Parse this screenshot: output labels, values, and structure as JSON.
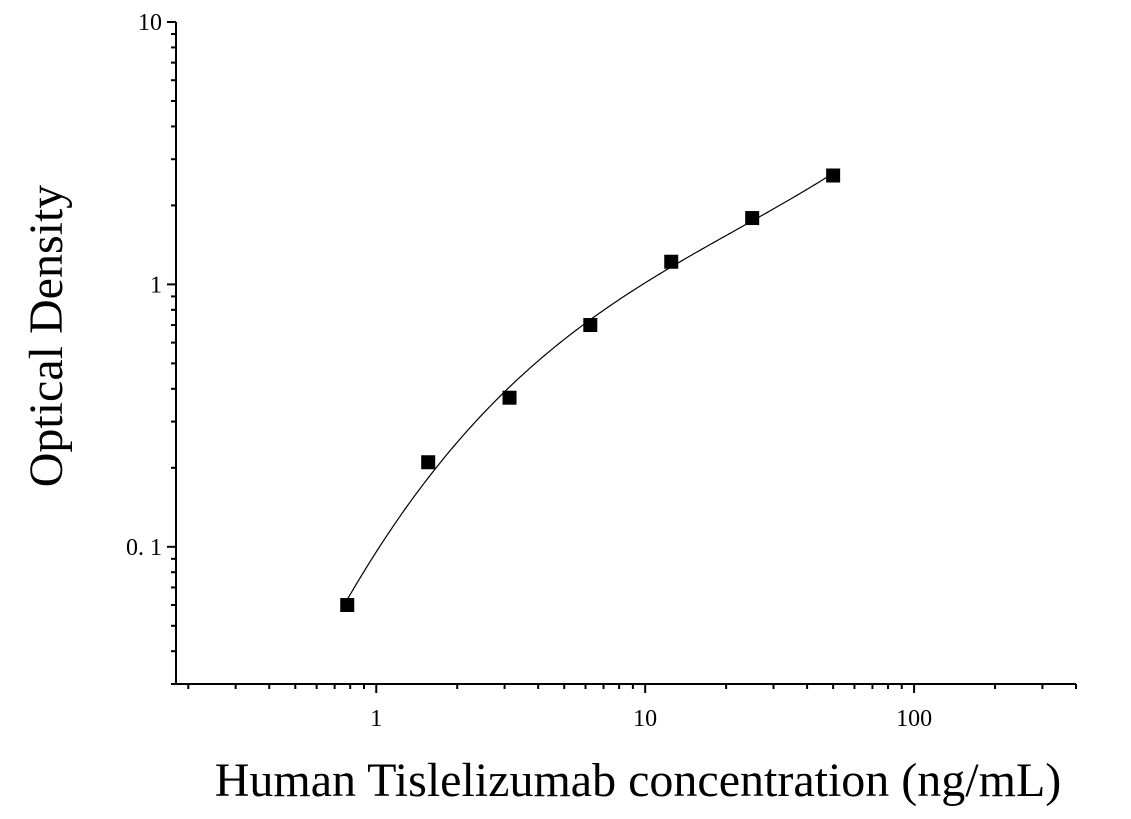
{
  "chart_data": {
    "type": "scatter",
    "title": "",
    "xlabel": "Human Tislelizumab concentration (ng/mL)",
    "ylabel": "Optical Density",
    "x_scale": "log",
    "y_scale": "log",
    "xlim": [
      0.18,
      400
    ],
    "ylim": [
      0.03,
      10
    ],
    "x_ticks": [
      {
        "value": 1,
        "label": "1"
      },
      {
        "value": 10,
        "label": "10"
      },
      {
        "value": 100,
        "label": "100"
      }
    ],
    "y_ticks": [
      {
        "value": 0.1,
        "label": "0. 1"
      },
      {
        "value": 1,
        "label": "1"
      },
      {
        "value": 10,
        "label": "10"
      }
    ],
    "grid": false,
    "legend": "none",
    "series": [
      {
        "marker": "square",
        "color": "#000000",
        "points": [
          {
            "x": 0.78,
            "y": 0.06
          },
          {
            "x": 1.56,
            "y": 0.21
          },
          {
            "x": 3.13,
            "y": 0.37
          },
          {
            "x": 6.25,
            "y": 0.7
          },
          {
            "x": 12.5,
            "y": 1.22
          },
          {
            "x": 25,
            "y": 1.79
          },
          {
            "x": 50,
            "y": 2.6
          }
        ]
      }
    ],
    "fit_curve": {
      "color": "#000000",
      "x_range": [
        0.78,
        50
      ]
    }
  }
}
